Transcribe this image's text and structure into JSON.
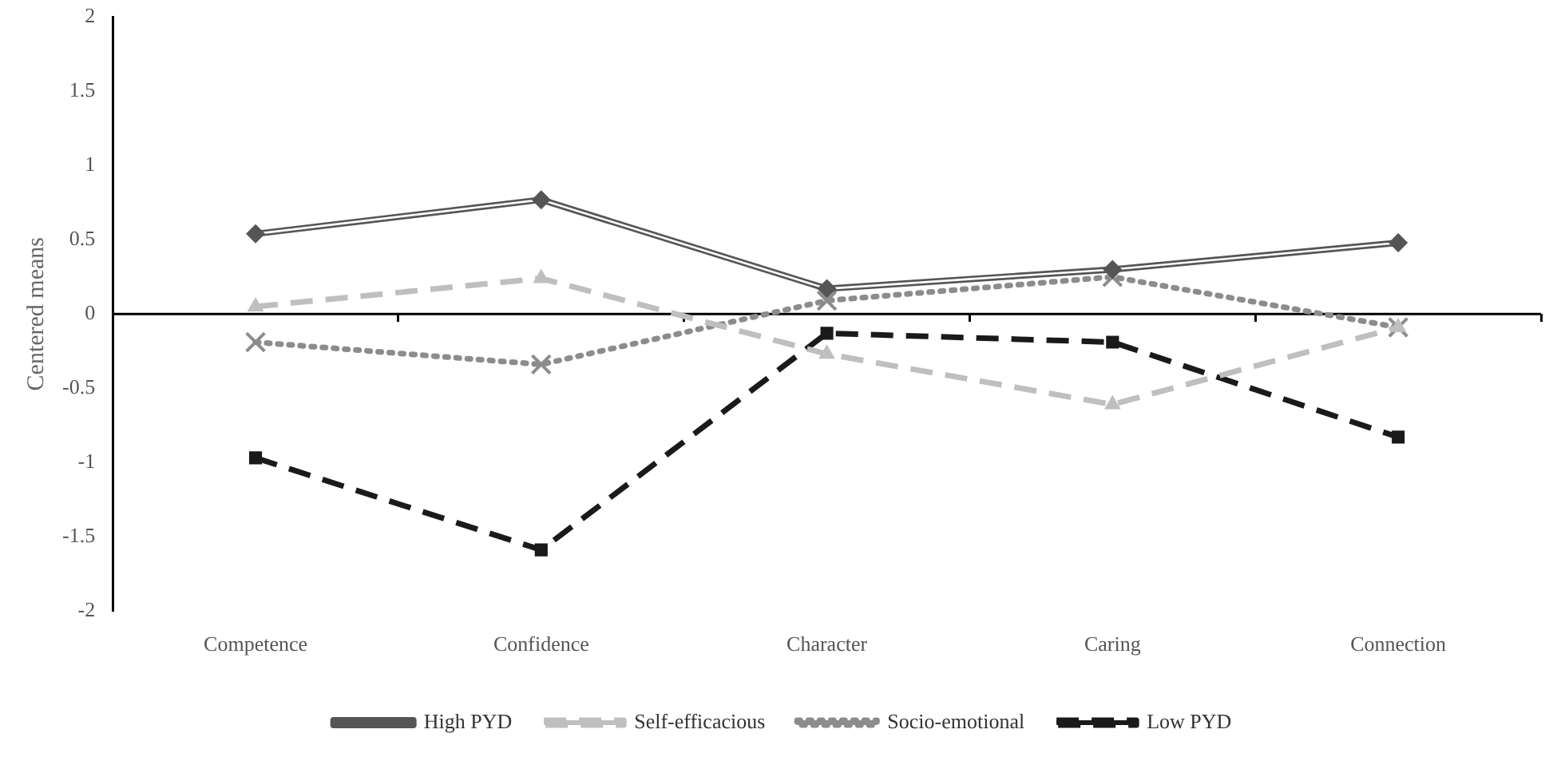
{
  "chart_data": {
    "type": "line",
    "ylabel": "Centered means",
    "categories": [
      "Competence",
      "Confidence",
      "Character",
      "Caring",
      "Connection"
    ],
    "series": [
      {
        "name": "High PYD",
        "color": "#555555",
        "line_style": "solid",
        "marker": "diamond",
        "values": [
          0.54,
          0.77,
          0.17,
          0.3,
          0.48
        ]
      },
      {
        "name": "Self-efficacious",
        "color": "#bfbfbf",
        "line_style": "dashed",
        "marker": "triangle",
        "values": [
          0.05,
          0.24,
          -0.27,
          -0.61,
          -0.09
        ]
      },
      {
        "name": "Socio-emotional",
        "color": "#8c8c8c",
        "line_style": "dotted",
        "marker": "cross",
        "values": [
          -0.19,
          -0.34,
          0.09,
          0.25,
          -0.09
        ]
      },
      {
        "name": "Low PYD",
        "color": "#1a1a1a",
        "line_style": "dashed",
        "marker": "square",
        "values": [
          -0.97,
          -1.59,
          -0.13,
          -0.19,
          -0.83
        ]
      }
    ],
    "ref_lines": [
      {
        "axis": "y",
        "value": 0,
        "color": "#000000",
        "line_style": "solid"
      }
    ],
    "ylim": [
      -2,
      2
    ],
    "yticks": [
      -2,
      -1.5,
      -1,
      -0.5,
      0,
      0.5,
      1,
      1.5,
      2
    ],
    "grid": false,
    "legend": "bottom"
  }
}
